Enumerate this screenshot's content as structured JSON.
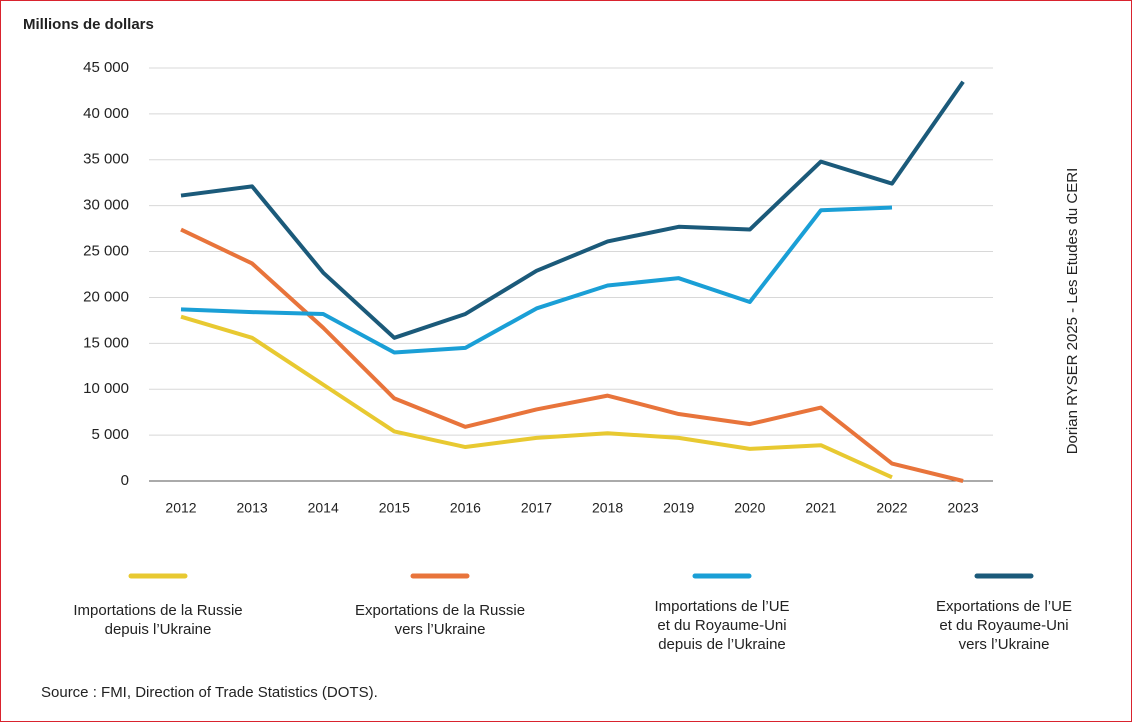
{
  "chart_data": {
    "type": "line",
    "ylabel": "Millions de dollars",
    "annotation": "Dorian RYSER 2025 - Les Etudes du CERI",
    "source": "Source : FMI, Direction of Trade Statistics (DOTS).",
    "categories": [
      "2012",
      "2013",
      "2014",
      "2015",
      "2016",
      "2017",
      "2018",
      "2019",
      "2020",
      "2021",
      "2022",
      "2023"
    ],
    "series": [
      {
        "name": "Importations de la Russie\ndepuis l’Ukraine",
        "color": "#e8c931",
        "values": [
          17900,
          15600,
          10500,
          5400,
          3700,
          4700,
          5200,
          4700,
          3500,
          3900,
          400,
          null
        ]
      },
      {
        "name": "Exportations de la Russie\nvers l’Ukraine",
        "color": "#e8743b",
        "values": [
          27400,
          23700,
          16700,
          9000,
          5900,
          7800,
          9300,
          7300,
          6200,
          8000,
          1900,
          0
        ]
      },
      {
        "name": "Importations de l’UE\net du Royaume-Uni\ndepuis de l’Ukraine",
        "color": "#1a9fd6",
        "values": [
          18700,
          18400,
          18200,
          14000,
          14500,
          18800,
          21300,
          22100,
          19500,
          29500,
          29800,
          null
        ]
      },
      {
        "name": "Exportations de l’UE\net du Royaume-Uni\nvers l’Ukraine",
        "color": "#1b5a7a",
        "values": [
          31100,
          32100,
          22700,
          15600,
          18200,
          22900,
          26100,
          27700,
          27400,
          34800,
          32400,
          43500
        ]
      }
    ],
    "ylim": [
      0,
      45000
    ],
    "yticks": [
      0,
      {
        "value": 5000,
        "label": "5 000"
      },
      {
        "value": 10000,
        "label": "10 000"
      },
      {
        "value": 15000,
        "label": "15 000"
      },
      {
        "value": 20000,
        "label": "20 000"
      },
      {
        "value": 25000,
        "label": "25 000"
      },
      {
        "value": 30000,
        "label": "30 000"
      },
      {
        "value": 35000,
        "label": "35 000"
      },
      {
        "value": 40000,
        "label": "40 000"
      },
      {
        "value": 45000,
        "label": "45 000"
      }
    ],
    "grid": true
  }
}
